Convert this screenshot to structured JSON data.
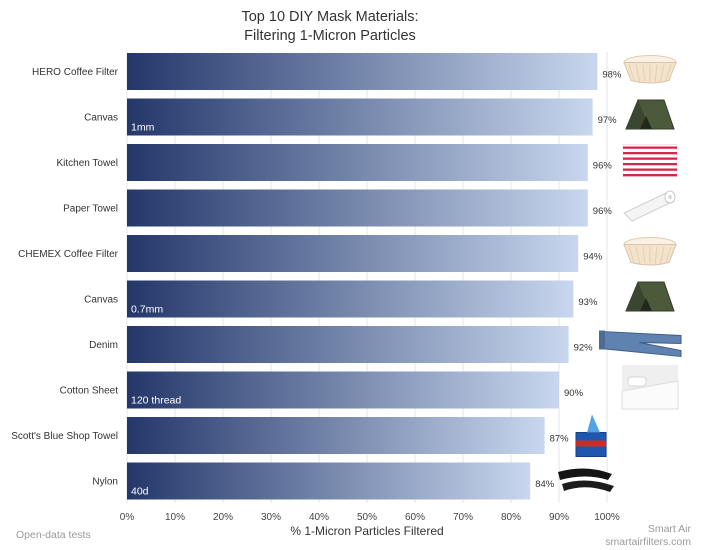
{
  "page": {
    "footer_left": "Open-data tests",
    "brand": "Smart Air",
    "brand_url": "smartairfilters.com"
  },
  "chart_data": {
    "type": "bar",
    "orientation": "horizontal",
    "title_line1": "Top 10 DIY Mask Materials:",
    "title_line2": "Filtering 1-Micron Particles",
    "xlabel": "% 1-Micron Particles Filtered",
    "ylabel": "",
    "xlim": [
      0,
      100
    ],
    "xticks": [
      "0%",
      "10%",
      "20%",
      "30%",
      "40%",
      "50%",
      "60%",
      "70%",
      "80%",
      "90%",
      "100%"
    ],
    "grid": true,
    "gradient_colors": [
      "#24376a",
      "#c8d7ee"
    ],
    "categories": [
      "HERO Coffee Filter",
      "Canvas",
      "Kitchen Towel",
      "Paper Towel",
      "CHEMEX Coffee Filter",
      "Canvas",
      "Denim",
      "Cotton Sheet",
      "Scott's Blue Shop Towel",
      "Nylon"
    ],
    "values": [
      98,
      97,
      96,
      96,
      94,
      93,
      92,
      90,
      87,
      84
    ],
    "data_labels": [
      "98%",
      "97%",
      "96%",
      "96%",
      "94%",
      "93%",
      "92%",
      "90%",
      "87%",
      "84%"
    ],
    "bar_notes": [
      "",
      "1mm",
      "",
      "",
      "",
      "0.7mm",
      "",
      "120 thread",
      "",
      "40d"
    ],
    "thumbnails": [
      "coffee-filter-icon",
      "tent-icon",
      "kitchen-towel-icon",
      "paper-towel-roll-icon",
      "coffee-filter-icon",
      "tent-icon",
      "jeans-icon",
      "bed-sheet-icon",
      "shop-towel-box-icon",
      "nylon-stockings-icon"
    ]
  }
}
